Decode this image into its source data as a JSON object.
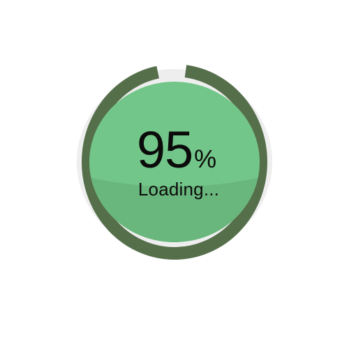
{
  "progress": {
    "fraction": 0.95,
    "value_text": "95",
    "unit": "%",
    "status_label": "Loading..."
  },
  "colors": {
    "ring": "#566f4b",
    "track_gap": "#eeeeee",
    "face_top": "#73c689",
    "face_bottom": "#6ab77d",
    "text": "#0b0b0b"
  }
}
